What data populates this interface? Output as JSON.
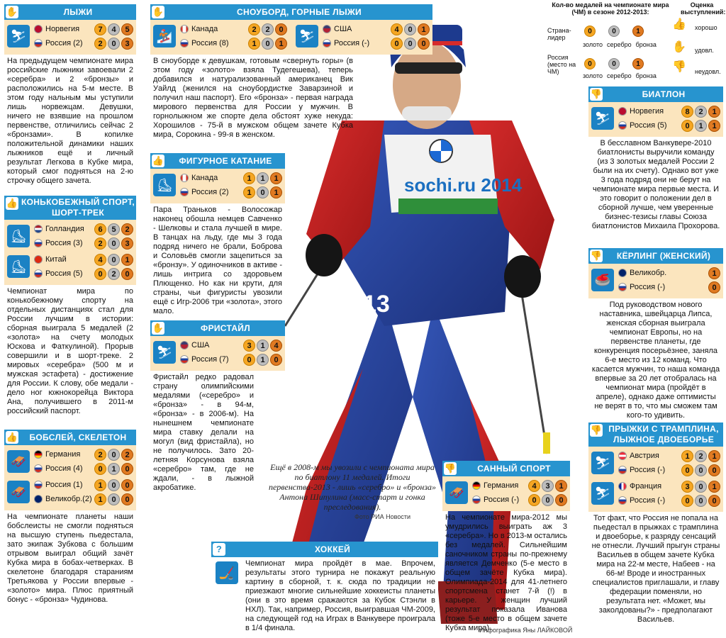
{
  "legend": {
    "title": "Кол-во медалей на чемпионате мира (ЧМ) в сезоне 2012-2013:",
    "rate": "Оценка выступлений:",
    "leader": "Страна-лидер",
    "russia": "Россия (место на ЧМ)",
    "leader_vals": [
      "0",
      "0",
      "1"
    ],
    "russia_vals": [
      "0",
      "0",
      "1"
    ],
    "g": "золото",
    "s": "серебро",
    "b": "бронза",
    "good": "хорошо",
    "ok": "удовл.",
    "bad": "неудовл."
  },
  "ski": {
    "title": "Лыжи",
    "r1": {
      "c": "Норвегия",
      "v": [
        "7",
        "4",
        "5"
      ]
    },
    "r2": {
      "c": "Россия (2)",
      "v": [
        "2",
        "0",
        "3"
      ]
    },
    "text": "На предыдущем чемпионате мира российские лыжники завоевали 2 «серебра» и 2 «бронзы» и расположились на 5-м месте. В этом году нальным мы уступили лишь норвежцам. Девушки, ничего не взявшие на прошлом первенстве, отличились сейчас 2 «бронзами». В копилке положительной динамики наших лыжников ещё и личный результат Легкова в Кубке мира, который смог подняться на 2-ю строчку общего зачета."
  },
  "speed": {
    "title": "Конькобежный спорт, шорт-трек",
    "r1": {
      "c": "Голландия",
      "v": [
        "6",
        "5",
        "2"
      ]
    },
    "r2": {
      "c": "Россия (3)",
      "v": [
        "2",
        "0",
        "3"
      ]
    },
    "r3": {
      "c": "Китай",
      "v": [
        "4",
        "0",
        "1"
      ]
    },
    "r4": {
      "c": "Россия (5)",
      "v": [
        "0",
        "2",
        "0"
      ]
    },
    "text": "Чемпионат мира по конькобежному спорту на отдельных дистанциях стал для России лучшим в истории: сборная выиграла 5 медалей (2 «золота» на счету молодых Юскова и Фаткулиной). Прорыв совершили и в шорт-треке. 2 мировых «серебра» (500 м и мужская эстафета) - достижение для России. К слову, обе медали - дело ног южнокорейца Виктора Ана, получившего в 2011-м российский паспорт."
  },
  "bob": {
    "title": "Бобслей, скелетон",
    "r1": {
      "c": "Германия",
      "v": [
        "2",
        "0",
        "2"
      ]
    },
    "r2": {
      "c": "Россия (4)",
      "v": [
        "0",
        "1",
        "0"
      ]
    },
    "r3": {
      "c": "Россия (1)",
      "v": [
        "1",
        "0",
        "0"
      ]
    },
    "r4": {
      "c": "Великобр.(2)",
      "v": [
        "1",
        "0",
        "0"
      ]
    },
    "text": "На чемпионате планеты наши бобслеисты не смогли подняться на высшую ступень пьедестала, зато экипаж Зубкова с большим отрывом выиграл общий зачёт Кубка мира в бобах-четверках. В скелетоне благодаря стараниям Третьякова у России впервые - «золото» мира. Плюс приятный бонус - «бронза» Чудинова."
  },
  "snow": {
    "title": "Сноуборд, горные лыжи",
    "r1": {
      "c": "Канада",
      "v": [
        "2",
        "2",
        "0"
      ]
    },
    "r2": {
      "c": "Россия (8)",
      "v": [
        "1",
        "0",
        "1"
      ]
    },
    "r3": {
      "c": "США",
      "v": [
        "4",
        "0",
        "1"
      ]
    },
    "r4": {
      "c": "Россия (-)",
      "v": [
        "0",
        "0",
        "0"
      ]
    },
    "text": "В сноуборде к девушкам, готовым «свернуть горы» (в этом году «золото» взяла Тудегешева), теперь добавился и натурализованный американец Вик Уайлд (женился на сноубордистке Заварзиной и получил наш паспорт). Его «бронза» - первая награда мирового первенства для России у мужчин. В горнолыжном же спорте дела обстоят хуже некуда: Хорошилов - 75-й в мужском общем зачете Кубка мира, Сорокина - 99-я в женском."
  },
  "fig": {
    "title": "Фигурное катание",
    "r1": {
      "c": "Канада",
      "v": [
        "1",
        "1",
        "1"
      ]
    },
    "r2": {
      "c": "Россия (2)",
      "v": [
        "1",
        "0",
        "1"
      ]
    },
    "text": "Пара Траньков - Волосожар наконец обошла немцев Савченко - Шелковы и стала лучшей в мире. В танцах на льду, где мы 3 года подряд ничего не брали, Боброва и Соловьёв смогли зацепиться за «бронзу». У одиночников в активе - лишь интрига со здоровьем Плющенко. Но как ни крути, для страны, чьи фигуристы увозили ещё с Игр-2006 три «золота», этого мало."
  },
  "free": {
    "title": "Фристайл",
    "r1": {
      "c": "США",
      "v": [
        "3",
        "1",
        "4"
      ]
    },
    "r2": {
      "c": "Россия (7)",
      "v": [
        "0",
        "1",
        "0"
      ]
    },
    "text": "Фристайл редко радовал страну олимпийскими медалями («серебро» и «бронза» - в 94-м, «бронза» - в 2006-м). На нынешнем чемпионате мира ставку делали на могул (вид фристайла), но не получилось. Зато 20-летняя Корсунова взяла «серебро» там, где не ждали, - в лыжной акробатике."
  },
  "hockey": {
    "title": "Хоккей",
    "text": "Чемпионат мира пройдёт в мае. Впрочем, результаты этого турнира не покажут реальную картину в сборной, т. к. сюда по традиции не приезжают многие сильнейшие хоккеисты планеты (они в это время сражаются за Кубок Стэнли в НХЛ). Так, например, Россия, выигравшая ЧМ-2009, на следующей год на Играх в Ванкувере проиграла в 1/4 финала."
  },
  "luge": {
    "title": "Санный спорт",
    "r1": {
      "c": "Германия",
      "v": [
        "4",
        "3",
        "1"
      ]
    },
    "r2": {
      "c": "Россия (-)",
      "v": [
        "0",
        "0",
        "0"
      ]
    },
    "text": "На чемпионате мира-2012 мы умудрились выиграть аж 3 «серебра». Но в 2013-м остались без медалей. Сильнейшим саночником страны по-прежнему является Демченко (5-е место в общем зачёте Кубка мира). Олимпиада-2014 для 41-летнего спортсмена станет 7-й (!) в карьере. У женщин лучший результат показала Иванова (тоже 5-е место в общем зачете Кубка мира)."
  },
  "biathlon": {
    "title": "Биатлон",
    "r1": {
      "c": "Норвегия",
      "v": [
        "8",
        "2",
        "1"
      ]
    },
    "r2": {
      "c": "Россия (5)",
      "v": [
        "0",
        "1",
        "1"
      ]
    },
    "text": "В бесславном Ванкувере-2010 биатлонисты выручили команду (из 3 золотых медалей России 2 были на их счету). Однако вот уже 3 года подряд они не берут на чемпионате мира первые места. И это говорит о положении дел в сборной лучше, чем уверенные бизнес-тезисы главы Союза биатлонистов Михаила Прохорова."
  },
  "curl": {
    "title": "Кёрлинг (женский)",
    "r1": {
      "c": "Великобр.",
      "v": [
        "1"
      ]
    },
    "r2": {
      "c": "Россия (-)",
      "v": [
        "0"
      ]
    },
    "text": "Под руководством нового наставника, швейцарца Липса, женская сборная выиграла чемпионат Европы, но на первенстве планеты, где конкуренция посерьёзнее, заняла 6-е место из 12 команд. Что касается мужчин, то наша команда впервые за 20 лет отобралась на чемпионат мира (пройдёт в апреле), однако даже оптимисты не верят в то, что мы сможем там кого-то удивить."
  },
  "jump": {
    "title": "Прыжки с трамплина, лыжное двоеборье",
    "r1": {
      "c": "Австрия",
      "v": [
        "1",
        "2",
        "1"
      ]
    },
    "r2": {
      "c": "Россия (-)",
      "v": [
        "0",
        "0",
        "0"
      ]
    },
    "r3": {
      "c": "Франция",
      "v": [
        "3",
        "0",
        "1"
      ]
    },
    "r4": {
      "c": "Россия (-)",
      "v": [
        "0",
        "0",
        "0"
      ]
    },
    "text": "Тот факт, что Россия не попала на пьедестал в прыжках с трамплина и двоеборье, к разряду сенсаций не отнесли. Лучший прыгун страны Васильев в общем зачете Кубка мира на 22-м месте, Набеев - на 66-м! Вроде и иностранных специалистов приглашали, и главу федерации поменяли, но результата нет. «Может, мы заколдованы?» - предполагают Васильев."
  },
  "caption": "Ещё в 2008-м мы увозили с чемпионата мира по биатлону 11 медалей. Итоги первенства-2013 - лишь «серебро» и «бронза» Антона Шипулина (масс-старт и гонка преследования).",
  "photo_credit": "Фото РИА Новости",
  "credit": "Инфографика Яны ЛАЙКОВОЙ",
  "bib": {
    "sponsor": "sochi.ru 2014",
    "number": "13"
  }
}
